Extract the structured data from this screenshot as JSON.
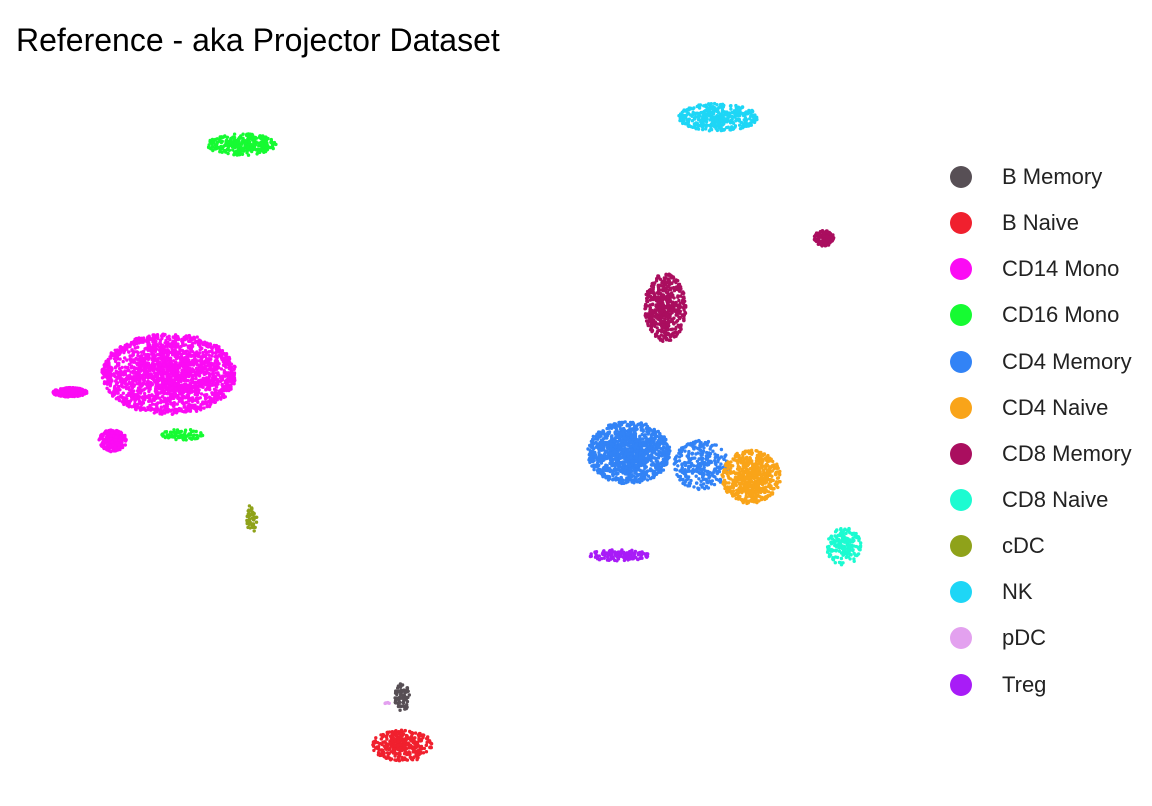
{
  "title": "Reference - aka Projector Dataset",
  "chart_data": {
    "type": "scatter",
    "title": "Reference - aka Projector Dataset",
    "xlabel": "",
    "ylabel": "",
    "grid": false,
    "legend_position": "right",
    "xlim": [
      -12,
      12
    ],
    "ylim": [
      -12,
      12
    ],
    "series": [
      {
        "name": "B Memory",
        "color": "#574f55",
        "n": 90,
        "clusters": [
          {
            "cx": -3.55,
            "cy": -9.1,
            "sx": 0.22,
            "sy": 0.45
          }
        ]
      },
      {
        "name": "B Naive",
        "color": "#f0202e",
        "n": 420,
        "clusters": [
          {
            "cx": -3.55,
            "cy": -10.7,
            "sx": 0.9,
            "sy": 0.5
          }
        ]
      },
      {
        "name": "CD14 Mono",
        "color": "#fb0bf4",
        "n": 2600,
        "clusters": [
          {
            "cx": -10.6,
            "cy": 1.6,
            "sx": 1.95,
            "sy": 1.3
          },
          {
            "cx": -12.3,
            "cy": -0.6,
            "sx": 0.4,
            "sy": 0.35
          },
          {
            "cx": -13.6,
            "cy": 1.0,
            "sx": 0.5,
            "sy": 0.15
          }
        ]
      },
      {
        "name": "CD16 Mono",
        "color": "#16fb32",
        "n": 380,
        "clusters": [
          {
            "cx": -8.4,
            "cy": 9.2,
            "sx": 1.0,
            "sy": 0.35
          },
          {
            "cx": -10.2,
            "cy": -0.4,
            "sx": 0.6,
            "sy": 0.18
          }
        ]
      },
      {
        "name": "CD4 Memory",
        "color": "#3283f6",
        "n": 1500,
        "clusters": [
          {
            "cx": 3.3,
            "cy": -1.0,
            "sx": 1.2,
            "sy": 1.0
          },
          {
            "cx": 5.5,
            "cy": -1.4,
            "sx": 0.8,
            "sy": 0.8
          }
        ]
      },
      {
        "name": "CD4 Naive",
        "color": "#f9a419",
        "n": 800,
        "clusters": [
          {
            "cx": 7.0,
            "cy": -1.8,
            "sx": 0.85,
            "sy": 0.85
          }
        ]
      },
      {
        "name": "CD8 Memory",
        "color": "#aa0e5f",
        "n": 650,
        "clusters": [
          {
            "cx": 4.4,
            "cy": 3.8,
            "sx": 0.6,
            "sy": 1.1
          },
          {
            "cx": 9.2,
            "cy": 6.1,
            "sx": 0.3,
            "sy": 0.25
          }
        ]
      },
      {
        "name": "CD8 Naive",
        "color": "#1cfbd1",
        "n": 230,
        "clusters": [
          {
            "cx": 9.8,
            "cy": -4.1,
            "sx": 0.5,
            "sy": 0.6
          }
        ]
      },
      {
        "name": "cDC",
        "color": "#8fa21a",
        "n": 60,
        "clusters": [
          {
            "cx": -8.1,
            "cy": -3.2,
            "sx": 0.15,
            "sy": 0.5
          }
        ]
      },
      {
        "name": "NK",
        "color": "#1ed6f6",
        "n": 500,
        "clusters": [
          {
            "cx": 6.0,
            "cy": 10.1,
            "sx": 1.15,
            "sy": 0.45
          }
        ]
      },
      {
        "name": "pDC",
        "color": "#e3a1ef",
        "n": 6,
        "clusters": [
          {
            "cx": -4.0,
            "cy": -9.3,
            "sx": 0.12,
            "sy": 0.12
          }
        ]
      },
      {
        "name": "Treg",
        "color": "#a81cf7",
        "n": 180,
        "clusters": [
          {
            "cx": 3.0,
            "cy": -4.4,
            "sx": 0.9,
            "sy": 0.18
          }
        ]
      }
    ]
  }
}
